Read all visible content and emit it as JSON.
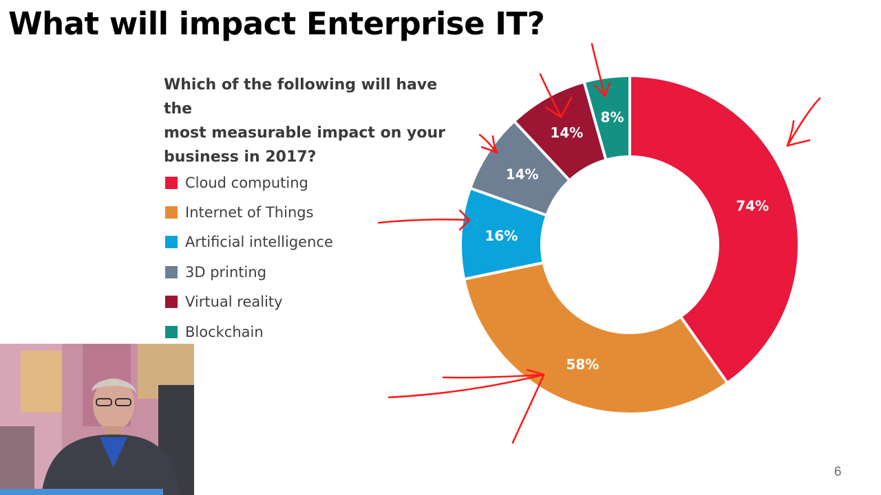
{
  "slide": {
    "title": "What will impact Enterprise IT?",
    "page_number": "6"
  },
  "chart_data": {
    "type": "pie",
    "title": "Which of the following will have the most measurable impact on your business in 2017?",
    "question_lines": [
      "Which of the following will have the",
      "most measurable impact on your",
      "business in 2017?"
    ],
    "legend_position": "left",
    "categories": [
      "Cloud computing",
      "Internet of Things",
      "Artificial intelligence",
      "3D printing",
      "Virtual reality",
      "Blockchain"
    ],
    "values": [
      74,
      58,
      16,
      14,
      14,
      8
    ],
    "value_labels": [
      "74%",
      "58%",
      "16%",
      "14%",
      "14%",
      "8%"
    ],
    "colors": [
      "#e8193c",
      "#e48c35",
      "#0aa3dc",
      "#6e7e93",
      "#9c1532",
      "#139283"
    ],
    "annotations": "red hand-drawn arrows pointing at each slice"
  },
  "webcam": {
    "icon": "presenter-video-icon"
  },
  "annotation_color": "#ff1a1a"
}
